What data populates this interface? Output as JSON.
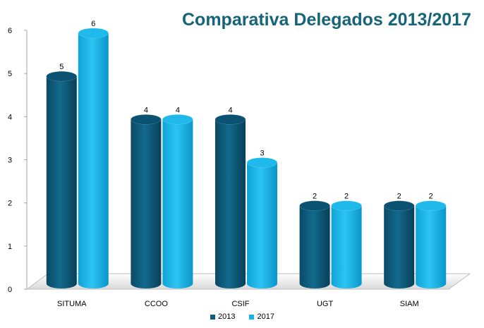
{
  "chart_data": {
    "type": "bar",
    "title": "Comparativa Delegados 2013/2017",
    "categories": [
      "SITUMA",
      "CCOO",
      "CSIF",
      "UGT",
      "SIAM"
    ],
    "series": [
      {
        "name": "2013",
        "values": [
          5,
          4,
          4,
          2,
          2
        ],
        "color": "#0e5c7c"
      },
      {
        "name": "2017",
        "values": [
          6,
          4,
          3,
          2,
          2
        ],
        "color": "#12b4ea"
      }
    ],
    "ylim": [
      0,
      6
    ],
    "yticks": [
      "0",
      "1",
      "2",
      "3",
      "4",
      "5",
      "6"
    ],
    "xlabel": "",
    "ylabel": "",
    "grid": false,
    "legend": "bottom",
    "style": "3d-cylinder"
  }
}
